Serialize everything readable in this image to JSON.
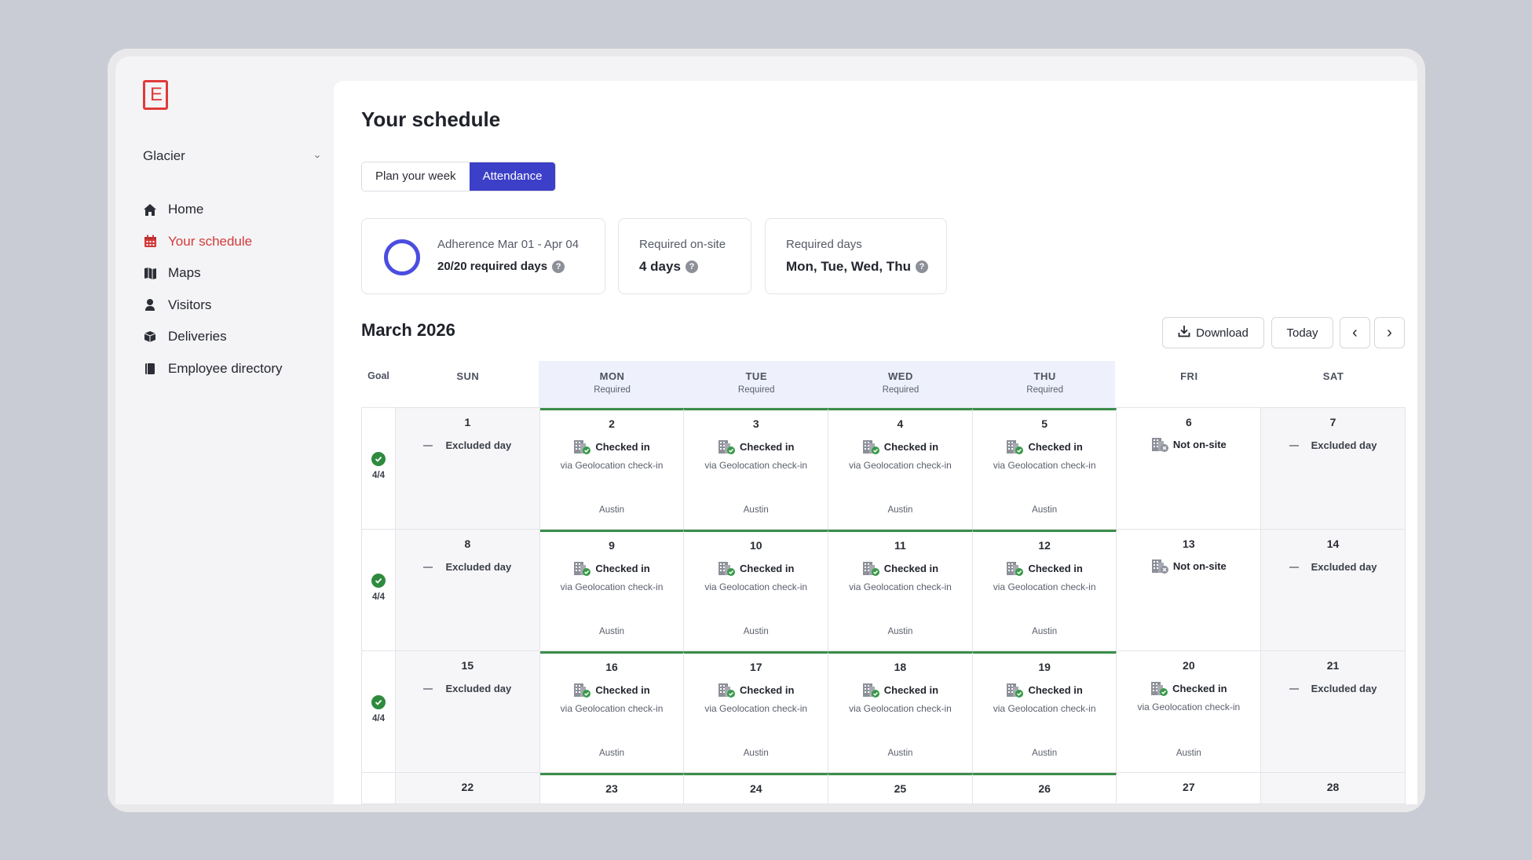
{
  "sidebar": {
    "logo_letter": "E",
    "org": "Glacier",
    "items": [
      {
        "label": "Home",
        "icon": "home-icon",
        "active": false
      },
      {
        "label": "Your schedule",
        "icon": "calendar-icon",
        "active": true
      },
      {
        "label": "Maps",
        "icon": "map-icon",
        "active": false
      },
      {
        "label": "Visitors",
        "icon": "visitor-icon",
        "active": false
      },
      {
        "label": "Deliveries",
        "icon": "package-icon",
        "active": false
      },
      {
        "label": "Employee directory",
        "icon": "book-icon",
        "active": false
      }
    ]
  },
  "main": {
    "title": "Your schedule",
    "tabs": [
      "Plan your week",
      "Attendance"
    ],
    "active_tab": "Attendance",
    "cards": {
      "adherence": {
        "label": "Adherence Mar 01 - Apr 04",
        "value": "20/20 required days"
      },
      "onsite": {
        "label": "Required on-site",
        "value": "4 days"
      },
      "days": {
        "label": "Required days",
        "value": "Mon, Tue, Wed, Thu"
      }
    },
    "month": "March 2026",
    "buttons": {
      "download": "Download",
      "today": "Today",
      "prev": "‹",
      "next": "›"
    }
  },
  "calendar": {
    "headers": {
      "goal": "Goal",
      "days": [
        {
          "name": "SUN",
          "req": ""
        },
        {
          "name": "MON",
          "req": "Required"
        },
        {
          "name": "TUE",
          "req": "Required"
        },
        {
          "name": "WED",
          "req": "Required"
        },
        {
          "name": "THU",
          "req": "Required"
        },
        {
          "name": "FRI",
          "req": ""
        },
        {
          "name": "SAT",
          "req": ""
        }
      ]
    },
    "labels": {
      "checked_in": "Checked in",
      "via": "via Geolocation check-in",
      "location": "Austin",
      "excluded": "Excluded day",
      "not_onsite": "Not on-site"
    },
    "weeks": [
      {
        "goal": "4/4",
        "days": [
          {
            "n": "1",
            "s": "excluded"
          },
          {
            "n": "2",
            "s": "checked"
          },
          {
            "n": "3",
            "s": "checked"
          },
          {
            "n": "4",
            "s": "checked"
          },
          {
            "n": "5",
            "s": "checked"
          },
          {
            "n": "6",
            "s": "not"
          },
          {
            "n": "7",
            "s": "excluded"
          }
        ]
      },
      {
        "goal": "4/4",
        "days": [
          {
            "n": "8",
            "s": "excluded"
          },
          {
            "n": "9",
            "s": "checked"
          },
          {
            "n": "10",
            "s": "checked"
          },
          {
            "n": "11",
            "s": "checked"
          },
          {
            "n": "12",
            "s": "checked"
          },
          {
            "n": "13",
            "s": "not"
          },
          {
            "n": "14",
            "s": "excluded"
          }
        ]
      },
      {
        "goal": "4/4",
        "days": [
          {
            "n": "15",
            "s": "excluded"
          },
          {
            "n": "16",
            "s": "checked"
          },
          {
            "n": "17",
            "s": "checked"
          },
          {
            "n": "18",
            "s": "checked"
          },
          {
            "n": "19",
            "s": "checked"
          },
          {
            "n": "20",
            "s": "checked"
          },
          {
            "n": "21",
            "s": "excluded"
          }
        ]
      },
      {
        "goal": "",
        "days": [
          {
            "n": "22",
            "s": ""
          },
          {
            "n": "23",
            "s": ""
          },
          {
            "n": "24",
            "s": ""
          },
          {
            "n": "25",
            "s": ""
          },
          {
            "n": "26",
            "s": ""
          },
          {
            "n": "27",
            "s": ""
          },
          {
            "n": "28",
            "s": ""
          }
        ]
      }
    ]
  },
  "colors": {
    "accent": "#3c3fc7",
    "active_nav": "#d33a3a",
    "success": "#2f8a3e"
  }
}
